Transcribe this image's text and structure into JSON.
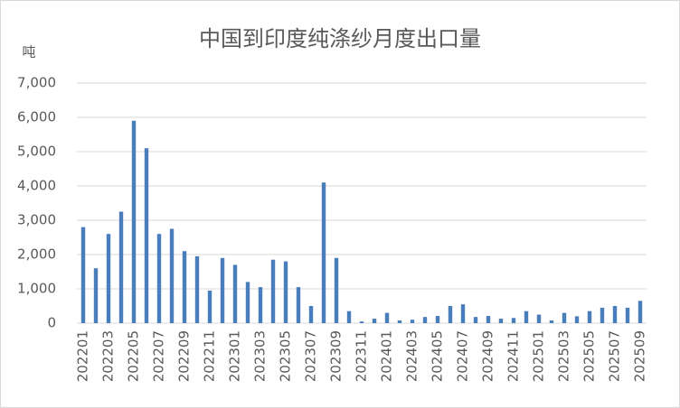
{
  "chart_data": {
    "type": "bar",
    "title": "中国到印度纯涤纱月度出口量",
    "y_label": "吨",
    "categories": [
      "202201",
      null,
      "202203",
      null,
      "202205",
      null,
      "202207",
      null,
      "202209",
      null,
      "202211",
      null,
      "202301",
      null,
      "202303",
      null,
      "202305",
      null,
      "202307",
      null,
      "202309",
      null,
      "202311",
      null,
      "202401",
      null,
      "202403",
      null,
      "202405",
      null,
      "202407",
      null,
      "202409",
      null,
      "202411",
      null,
      "202501",
      null,
      "202503",
      null,
      "202505",
      null,
      "202507",
      null,
      "202509"
    ],
    "values": [
      2800,
      1600,
      2600,
      3250,
      5900,
      5100,
      2600,
      2750,
      2100,
      1950,
      950,
      1900,
      1700,
      1200,
      1050,
      1850,
      1800,
      1050,
      500,
      4100,
      1900,
      350,
      50,
      130,
      300,
      80,
      100,
      180,
      210,
      500,
      550,
      180,
      210,
      130,
      150,
      350,
      250,
      80,
      300,
      200,
      350,
      450,
      500,
      450,
      650
    ],
    "color": "#4a7ebb",
    "ylim": [
      0,
      7000
    ],
    "yticks": [
      0,
      {
        "value": 1000,
        "label": "1,000"
      },
      {
        "value": 2000,
        "label": "2,000"
      },
      {
        "value": 3000,
        "label": "3,000"
      },
      {
        "value": 4000,
        "label": "4,000"
      },
      {
        "value": 5000,
        "label": "5,000"
      },
      {
        "value": 6000,
        "label": "6,000"
      },
      {
        "value": 7000,
        "label": "7,000"
      }
    ],
    "grid": true
  }
}
